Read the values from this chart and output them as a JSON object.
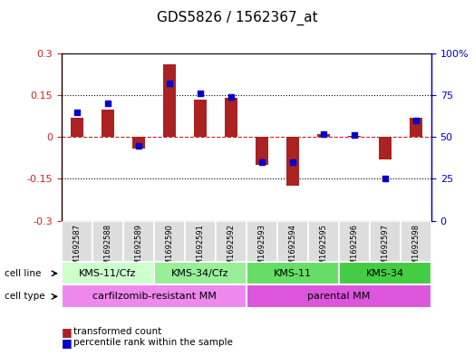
{
  "title": "GDS5826 / 1562367_at",
  "samples": [
    "GSM1692587",
    "GSM1692588",
    "GSM1692589",
    "GSM1692590",
    "GSM1692591",
    "GSM1692592",
    "GSM1692593",
    "GSM1692594",
    "GSM1692595",
    "GSM1692596",
    "GSM1692597",
    "GSM1692598"
  ],
  "transformed_count": [
    0.07,
    0.1,
    -0.04,
    0.26,
    0.135,
    0.14,
    -0.1,
    -0.175,
    0.01,
    0.005,
    -0.08,
    0.07
  ],
  "percentile_rank": [
    65,
    70,
    45,
    82,
    76,
    74,
    35,
    35,
    52,
    51,
    25,
    60
  ],
  "bar_color": "#aa2222",
  "dot_color": "#0000cc",
  "cell_line_groups": [
    {
      "label": "KMS-11/Cfz",
      "start": 0,
      "end": 2,
      "color": "#ccffcc"
    },
    {
      "label": "KMS-34/Cfz",
      "start": 3,
      "end": 5,
      "color": "#99ee99"
    },
    {
      "label": "KMS-11",
      "start": 6,
      "end": 8,
      "color": "#66dd66"
    },
    {
      "label": "KMS-34",
      "start": 9,
      "end": 11,
      "color": "#44cc44"
    }
  ],
  "cell_type_groups": [
    {
      "label": "carfilzomib-resistant MM",
      "start": 0,
      "end": 5,
      "color": "#ee88ee"
    },
    {
      "label": "parental MM",
      "start": 6,
      "end": 11,
      "color": "#dd55dd"
    }
  ],
  "ylim": [
    -0.3,
    0.3
  ],
  "yticks": [
    -0.3,
    -0.15,
    0,
    0.15,
    0.3
  ],
  "y2lim": [
    0,
    100
  ],
  "y2ticks": [
    0,
    25,
    50,
    75,
    100
  ],
  "hlines": [
    -0.15,
    0.15
  ],
  "background_color": "#ffffff"
}
